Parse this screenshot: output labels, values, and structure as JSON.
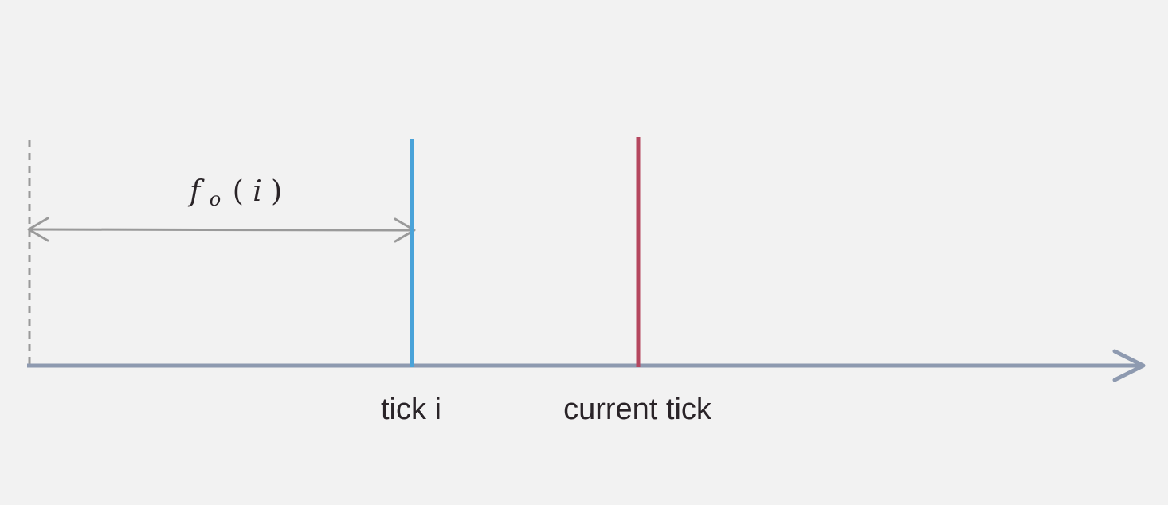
{
  "diagram": {
    "tick_i_label": "tick i",
    "current_tick_label": "current tick",
    "offset_label": {
      "f": "f",
      "subscript": "o",
      "open_paren": "(",
      "arg": "i",
      "close_paren": ")"
    }
  },
  "colors": {
    "background": "#f2f2f2",
    "axis": "#8e9ab0",
    "tick_i": "#4aa3d9",
    "current_tick": "#b5475f",
    "offset_arrow": "#9a9a9a",
    "origin_dashed": "#9a9a9a",
    "text": "#2a2428"
  }
}
